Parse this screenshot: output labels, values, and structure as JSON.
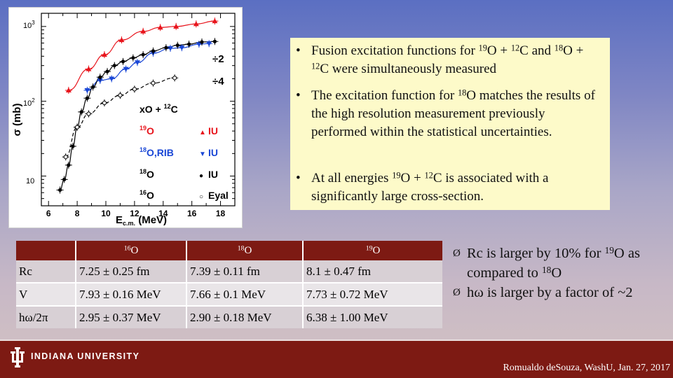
{
  "plot": {
    "y_ticks": [
      {
        "base": "10",
        "exp": "3"
      },
      {
        "base": "10",
        "exp": "2"
      },
      {
        "base": "10",
        "exp": ""
      }
    ],
    "x_ticks": [
      "6",
      "8",
      "10",
      "12",
      "14",
      "16",
      "18"
    ],
    "x_label": "E",
    "x_label_sub": "c.m.",
    "x_label_unit": " (MeV)",
    "y_label": "σ (mb)",
    "scale_labels": [
      "÷2",
      "÷4"
    ],
    "legend": {
      "title": {
        "pre": "x",
        "a": "O + ",
        "sup2": "12",
        "b": "C"
      },
      "rows": [
        {
          "sup": "19",
          "label": "O",
          "marker": "▲",
          "tag": "IU",
          "color": "#e8141c"
        },
        {
          "sup": "18",
          "label": "O,RIB",
          "marker": "▼",
          "tag": "IU",
          "color": "#1a47d6"
        },
        {
          "sup": "18",
          "label": "O",
          "marker": "●",
          "tag": "IU",
          "color": "#000000"
        },
        {
          "sup": "16",
          "label": "O",
          "marker": "○",
          "tag": "Eyal",
          "color": "#000000"
        }
      ]
    }
  },
  "bullets": [
    {
      "t1": "Fusion excitation functions for ",
      "s1": "19",
      "t2": "O + ",
      "s2": "12",
      "t3": "C and ",
      "s3": "18",
      "t4": "O + ",
      "s4": "12",
      "t5": "C were simultaneously measured"
    },
    {
      "t1": "The excitation function for ",
      "s1": "18",
      "t2": "O matches the results of the high resolution measurement previously performed within the statistical uncertainties."
    },
    {
      "t1": "At all energies ",
      "s1": "19",
      "t2": "O + ",
      "s2": "12",
      "t3": "C is associated with a significantly large cross-section."
    }
  ],
  "bullet_symbol": "•",
  "table": {
    "headers": [
      {
        "sup": "",
        "text": ""
      },
      {
        "sup": "16",
        "text": "O"
      },
      {
        "sup": "18",
        "text": "O"
      },
      {
        "sup": "19",
        "text": "O"
      }
    ],
    "rows": [
      {
        "param": "Rc",
        "v16": "7.25 ± 0.25 fm",
        "v18": "7.39 ± 0.11 fm",
        "v19": "8.1 ± 0.47 fm"
      },
      {
        "param": "V",
        "v16": "7.93 ± 0.16 MeV",
        "v18": "7.66 ± 0.1 MeV",
        "v19": "7.73 ± 0.72 MeV"
      },
      {
        "param": "hω/2π",
        "v16": "2.95 ± 0.37 MeV",
        "v18": "2.90 ± 0.18 MeV",
        "v19": "6.38 ± 1.00 MeV"
      }
    ]
  },
  "right_bullets": [
    {
      "t1": "Rc is larger by 10% for ",
      "s1": "19",
      "t2": "O as compared to ",
      "s2": "18",
      "t3": "O"
    },
    {
      "t1": "hω is larger by a factor of ~2"
    }
  ],
  "arrow_symbol": "Ø",
  "footer": {
    "university": "INDIANA UNIVERSITY",
    "credit": "Romualdo deSouza, WashU, Jan. 27, 2017"
  },
  "chart_data": {
    "type": "scatter",
    "title": "",
    "xlabel": "Ec.m. (MeV)",
    "ylabel": "σ (mb)",
    "xlim": [
      5.5,
      19
    ],
    "ylim": [
      4,
      1500
    ],
    "y_scale": "log",
    "grid": false,
    "series": [
      {
        "name": "19O IU",
        "marker": "triangle-up",
        "color": "#e8141c",
        "x": [
          7.4,
          8.8,
          9.9,
          11.1,
          12.6,
          13.8,
          14.9,
          16.3,
          17.6
        ],
        "y": [
          140,
          270,
          420,
          660,
          860,
          970,
          1000,
          1080,
          1180
        ]
      },
      {
        "name": "18O,RIB IU",
        "marker": "triangle-down",
        "color": "#1a47d6",
        "x": [
          8.7,
          9.6,
          10.4,
          11.4,
          12.2,
          13.3,
          14.5,
          15.3,
          16.5,
          17.2
        ],
        "y": [
          140,
          190,
          200,
          270,
          330,
          440,
          510,
          520,
          580,
          590
        ]
      },
      {
        "name": "18O IU",
        "marker": "circle",
        "color": "#000000",
        "x": [
          6.8,
          7.1,
          7.4,
          7.7,
          8.0,
          8.3,
          8.7,
          9.1,
          9.6,
          10.1,
          10.6,
          11.2,
          11.9,
          12.6,
          13.3,
          14.2,
          15.0,
          15.8,
          16.7,
          17.6
        ],
        "y": [
          6.5,
          9,
          14,
          25,
          45,
          72,
          110,
          155,
          210,
          250,
          300,
          340,
          380,
          420,
          470,
          520,
          560,
          580,
          620,
          630
        ]
      },
      {
        "name": "16O Eyal",
        "marker": "circle-open",
        "color": "#000000",
        "x": [
          7.2,
          8.0,
          8.8,
          9.9,
          11.0,
          12.0,
          13.3,
          14.8
        ],
        "y": [
          18,
          45,
          68,
          95,
          120,
          145,
          175,
          205
        ]
      }
    ]
  }
}
